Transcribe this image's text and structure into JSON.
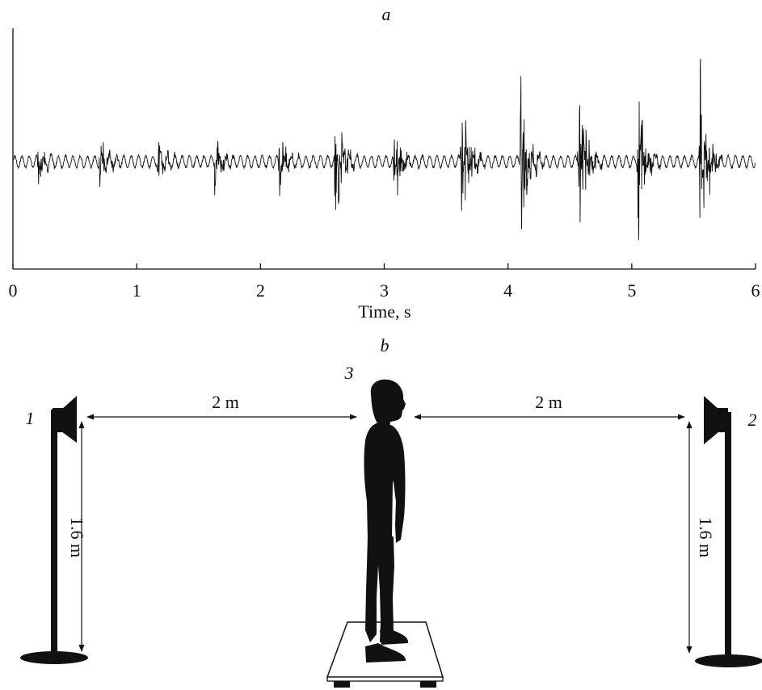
{
  "panel_a": {
    "label": "a",
    "chart_data": {
      "type": "line",
      "title": "",
      "xlabel": "Time, s",
      "ylabel": "",
      "xlim": [
        0,
        6
      ],
      "x_ticks": [
        "0",
        "1",
        "2",
        "3",
        "4",
        "5",
        "6"
      ],
      "series": [
        {
          "bursts": [
            {
              "t": 0.2,
              "amp": 0.22
            },
            {
              "t": 0.7,
              "amp": 0.35
            },
            {
              "t": 1.17,
              "amp": 0.28
            },
            {
              "t": 1.63,
              "amp": 0.3
            },
            {
              "t": 2.15,
              "amp": 0.32
            },
            {
              "t": 2.6,
              "amp": 0.65
            },
            {
              "t": 3.08,
              "amp": 0.45
            },
            {
              "t": 3.62,
              "amp": 0.75
            },
            {
              "t": 4.1,
              "amp": 0.95
            },
            {
              "t": 4.57,
              "amp": 0.92
            },
            {
              "t": 5.05,
              "amp": 0.8
            },
            {
              "t": 5.55,
              "amp": 1.0
            }
          ],
          "baseline_amp": 0.05
        }
      ]
    }
  },
  "panel_b": {
    "label": "b",
    "speaker_left_label": "1",
    "speaker_right_label": "2",
    "subject_label": "3",
    "distance_left": "2 m",
    "distance_right": "2 m",
    "height_left": "1.6 m",
    "height_right": "1.6 m"
  }
}
